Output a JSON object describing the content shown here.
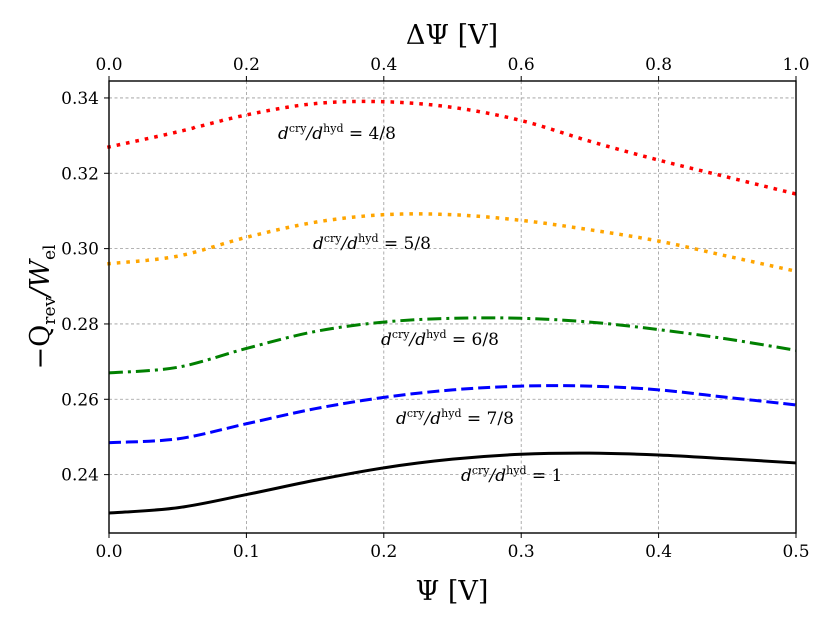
{
  "chart_data": {
    "type": "line",
    "title": "",
    "xlabel": "Ψ [V]",
    "ylabel": "−Q_rev/W_el",
    "ylabel_main": "−Q",
    "ylabel_sub": "rev",
    "ylabel_rest": "/W",
    "ylabel_sub2": "el",
    "x2label": "ΔΨ [V]",
    "xlim": [
      0,
      0.5
    ],
    "x2lim": [
      0,
      1.0
    ],
    "ylim": [
      0.2245,
      0.3445
    ],
    "grid": true,
    "xticks": [
      "0.0",
      "0.1",
      "0.2",
      "0.3",
      "0.4",
      "0.5"
    ],
    "x2ticks": [
      "0.0",
      "0.2",
      "0.4",
      "0.6",
      "0.8",
      "1.0"
    ],
    "yticks": [
      "0.24",
      "0.26",
      "0.28",
      "0.30",
      "0.32",
      "0.34"
    ],
    "series": [
      {
        "name": "d^cry/d^hyd = 4/8",
        "label_main": "d",
        "label_sup1": "cry",
        "label_mid": "/d",
        "label_sup2": "hyd",
        "label_tail": " = 4/8",
        "color": "#ff0000",
        "style": "dotted",
        "x": [
          0.0,
          0.05,
          0.1,
          0.15,
          0.2,
          0.25,
          0.3,
          0.35,
          0.4,
          0.45,
          0.5
        ],
        "y": [
          0.327,
          0.331,
          0.3355,
          0.3385,
          0.339,
          0.3375,
          0.334,
          0.3285,
          0.3235,
          0.319,
          0.3145
        ]
      },
      {
        "name": "d^cry/d^hyd = 5/8",
        "label_main": "d",
        "label_sup1": "cry",
        "label_mid": "/d",
        "label_sup2": "hyd",
        "label_tail": " = 5/8",
        "color": "#ffa500",
        "style": "dotted",
        "x": [
          0.0,
          0.05,
          0.1,
          0.15,
          0.2,
          0.25,
          0.3,
          0.35,
          0.4,
          0.45,
          0.5
        ],
        "y": [
          0.296,
          0.298,
          0.303,
          0.307,
          0.309,
          0.309,
          0.3075,
          0.305,
          0.302,
          0.298,
          0.294
        ]
      },
      {
        "name": "d^cry/d^hyd = 6/8",
        "label_main": "d",
        "label_sup1": "cry",
        "label_mid": "/d",
        "label_sup2": "hyd",
        "label_tail": " = 6/8",
        "color": "#008000",
        "style": "dashdot",
        "x": [
          0.0,
          0.05,
          0.1,
          0.15,
          0.2,
          0.25,
          0.3,
          0.35,
          0.4,
          0.45,
          0.5
        ],
        "y": [
          0.267,
          0.2685,
          0.2735,
          0.278,
          0.2805,
          0.2815,
          0.2815,
          0.2805,
          0.2785,
          0.276,
          0.273
        ]
      },
      {
        "name": "d^cry/d^hyd = 7/8",
        "label_main": "d",
        "label_sup1": "cry",
        "label_mid": "/d",
        "label_sup2": "hyd",
        "label_tail": " = 7/8",
        "color": "#0000ff",
        "style": "dashed",
        "x": [
          0.0,
          0.05,
          0.1,
          0.15,
          0.2,
          0.25,
          0.3,
          0.35,
          0.4,
          0.45,
          0.5
        ],
        "y": [
          0.2485,
          0.2495,
          0.2535,
          0.2575,
          0.2605,
          0.2625,
          0.2635,
          0.2635,
          0.2625,
          0.2605,
          0.2585
        ]
      },
      {
        "name": "d^cry/d^hyd = 1",
        "label_main": "d",
        "label_sup1": "cry",
        "label_mid": "/d",
        "label_sup2": "hyd",
        "label_tail": " = 1",
        "color": "#000000",
        "style": "solid",
        "x": [
          0.0,
          0.05,
          0.1,
          0.15,
          0.2,
          0.25,
          0.3,
          0.35,
          0.4,
          0.45,
          0.5
        ],
        "y": [
          0.2298,
          0.2312,
          0.2347,
          0.2385,
          0.2418,
          0.2441,
          0.2454,
          0.2457,
          0.2452,
          0.2442,
          0.2431
        ]
      }
    ]
  }
}
